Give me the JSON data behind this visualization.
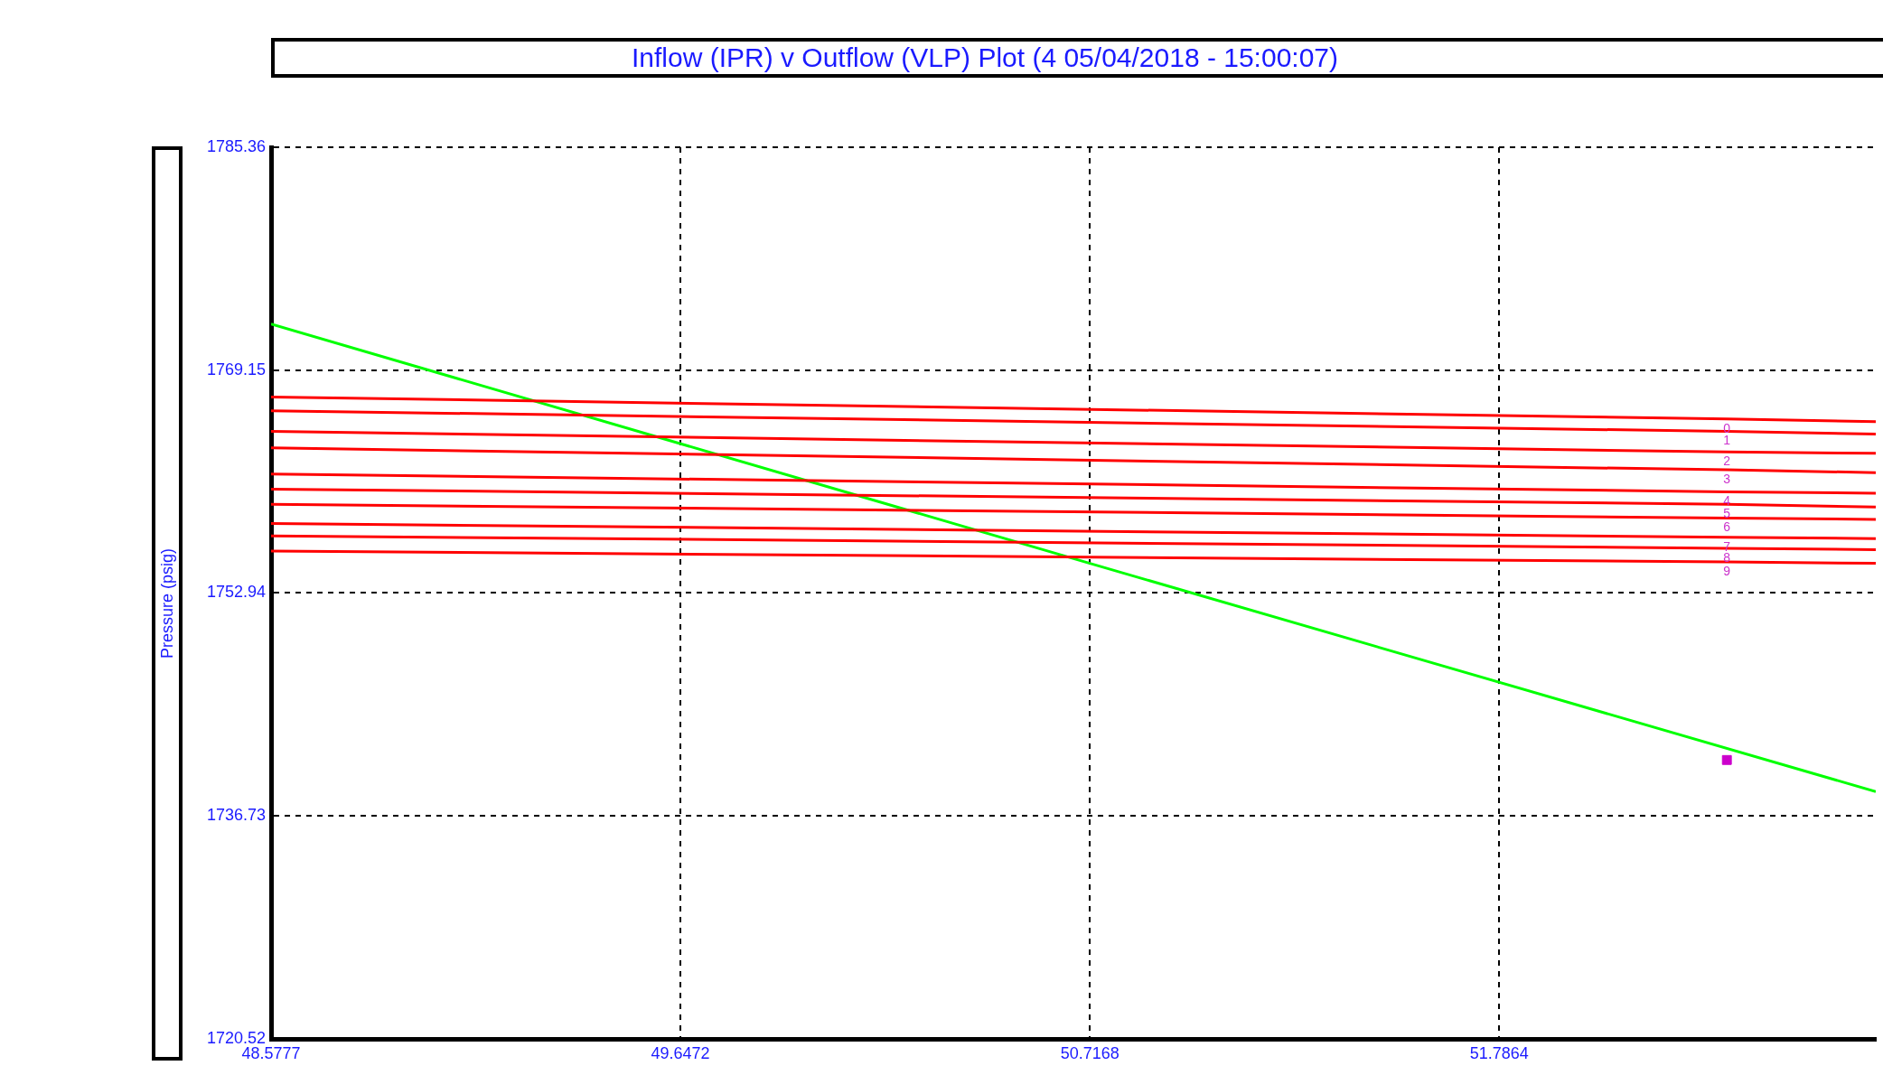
{
  "chart_data": {
    "type": "line",
    "title": "Inflow (IPR) v Outflow (VLP) Plot (4 05/04/2018 - 15:00:07)",
    "ylabel": "Pressure  (psig)",
    "xlim": [
      48.5777,
      52.77
    ],
    "xticks": [
      48.5777,
      49.6472,
      50.7168,
      51.7864
    ],
    "ylim": [
      1720.52,
      1785.36
    ],
    "yticks": [
      1720.52,
      1736.73,
      1752.94,
      1769.15,
      1785.36
    ],
    "grid": true,
    "legend": false,
    "marker": "none",
    "series": [
      {
        "name": "0",
        "color": "#ff0000",
        "x": [
          48.5777,
          52.381,
          52.77
        ],
        "values": [
          1767.2,
          1765.6,
          1765.4
        ]
      },
      {
        "name": "1",
        "color": "#ff0000",
        "x": [
          48.5777,
          52.381,
          52.77
        ],
        "values": [
          1766.2,
          1764.7,
          1764.5
        ]
      },
      {
        "name": "2",
        "color": "#ff0000",
        "x": [
          48.5777,
          52.381,
          52.77
        ],
        "values": [
          1764.7,
          1763.2,
          1763.1
        ]
      },
      {
        "name": "3",
        "color": "#ff0000",
        "x": [
          48.5777,
          52.381,
          52.77
        ],
        "values": [
          1763.5,
          1761.9,
          1761.7
        ]
      },
      {
        "name": "4",
        "color": "#ff0000",
        "x": [
          48.5777,
          52.381,
          52.77
        ],
        "values": [
          1761.6,
          1760.3,
          1760.2
        ]
      },
      {
        "name": "5",
        "color": "#ff0000",
        "x": [
          48.5777,
          52.381,
          52.77
        ],
        "values": [
          1760.5,
          1759.4,
          1759.2
        ]
      },
      {
        "name": "6",
        "color": "#ff0000",
        "x": [
          48.5777,
          52.381,
          52.77
        ],
        "values": [
          1759.4,
          1758.4,
          1758.3
        ]
      },
      {
        "name": "7",
        "color": "#ff0000",
        "x": [
          48.5777,
          52.381,
          52.77
        ],
        "values": [
          1758.0,
          1757.0,
          1756.9
        ]
      },
      {
        "name": "8",
        "color": "#ff0000",
        "x": [
          48.5777,
          52.381,
          52.77
        ],
        "values": [
          1757.1,
          1756.2,
          1756.1
        ]
      },
      {
        "name": "9",
        "color": "#ff0000",
        "x": [
          48.5777,
          52.381,
          52.77
        ],
        "values": [
          1756.0,
          1755.2,
          1755.1
        ]
      },
      {
        "color": "#00ff00",
        "x": [
          48.5777,
          50.7168,
          52.77
        ],
        "values": [
          1772.5,
          1755.1,
          1738.5
        ]
      },
      {
        "type": "scatter",
        "marker": "square",
        "color": "#cc00cc",
        "x": [
          52.381
        ],
        "values": [
          1740.8
        ]
      }
    ]
  }
}
